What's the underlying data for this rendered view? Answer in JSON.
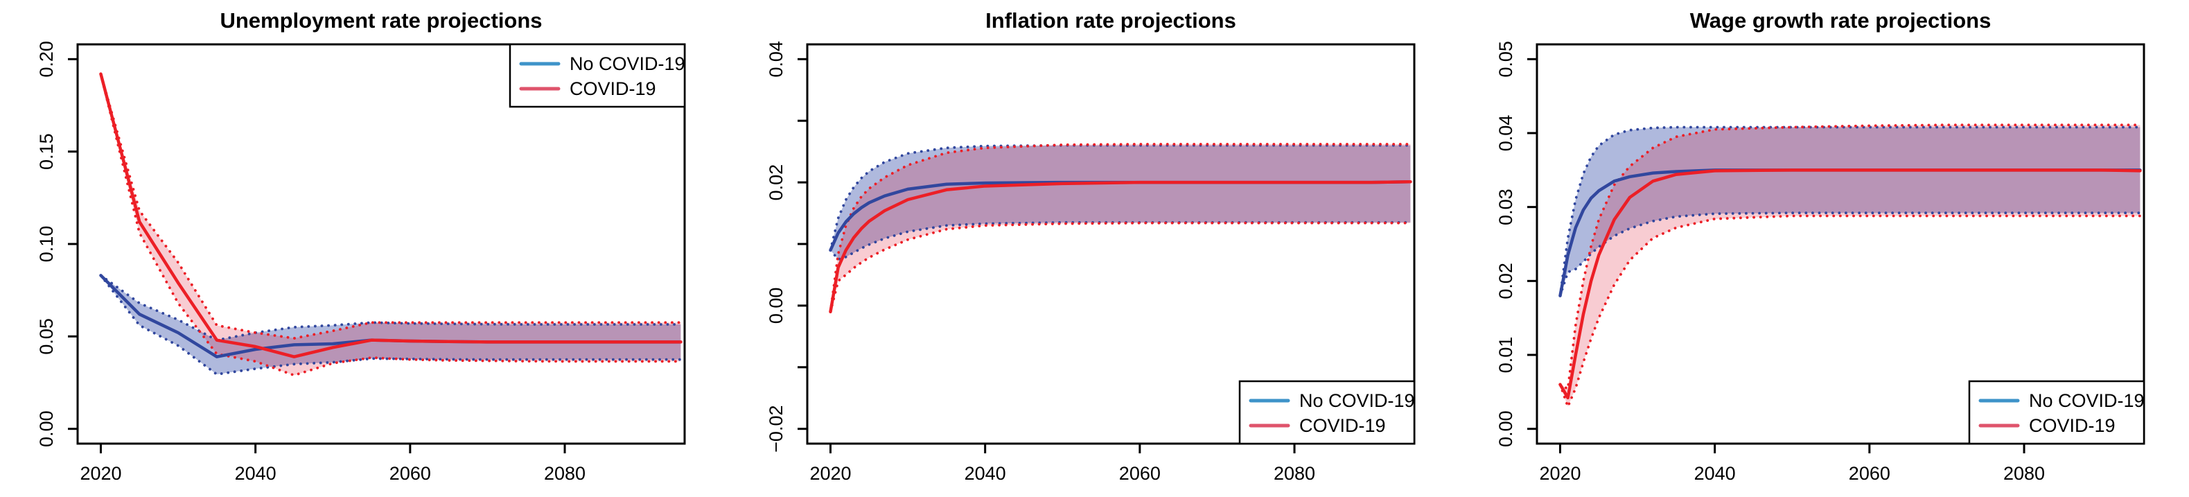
{
  "page": {
    "background": "#FFFFFF"
  },
  "colors": {
    "background": "#FFFFFF",
    "axis": "#000000",
    "text": "#000000",
    "no_covid_line": "#31479E",
    "covid_line": "#EC1F26",
    "no_covid_band": "rgba(26,55,158,0.35)",
    "covid_band": "rgba(220,0,30,0.20)",
    "legend_no_covid": "#3E93C9",
    "legend_covid": "#DF536B"
  },
  "legend_labels": {
    "no_covid": "No COVID-19",
    "covid": "COVID-19"
  },
  "chart_data": [
    {
      "type": "line",
      "title": "Unemployment rate projections",
      "xlabel": "",
      "ylabel": "",
      "x_range": [
        2017,
        2095.5
      ],
      "x_ticks": [
        2020,
        2040,
        2060,
        2080
      ],
      "y_range": [
        -0.008,
        0.208
      ],
      "y_ticks": [
        {
          "v": 0.0,
          "label": "0.00"
        },
        {
          "v": 0.05,
          "label": "0.05"
        },
        {
          "v": 0.1,
          "label": "0.10"
        },
        {
          "v": 0.15,
          "label": "0.15"
        },
        {
          "v": 0.2,
          "label": "0.20"
        }
      ],
      "grid": false,
      "legend_position": "top-right",
      "legend": [
        {
          "label": "No COVID-19",
          "color_key": "legend_no_covid"
        },
        {
          "label": "COVID-19",
          "color_key": "legend_covid"
        }
      ],
      "years": [
        2020,
        2025,
        2030,
        2035,
        2040,
        2045,
        2050,
        2055,
        2060,
        2065,
        2070,
        2075,
        2080,
        2085,
        2090,
        2095
      ],
      "series": [
        {
          "name": "No COVID-19",
          "color_key": "no_covid_line",
          "values": [
            0.083,
            0.062,
            0.052,
            0.039,
            0.043,
            0.0455,
            0.046,
            0.048,
            0.0475,
            0.0472,
            0.047,
            0.047,
            0.047,
            0.047,
            0.047,
            0.047
          ]
        },
        {
          "name": "COVID-19",
          "color_key": "covid_line",
          "values": [
            0.192,
            0.112,
            0.079,
            0.048,
            0.0445,
            0.039,
            0.044,
            0.048,
            0.0475,
            0.0472,
            0.047,
            0.047,
            0.047,
            0.047,
            0.047,
            0.047
          ]
        }
      ],
      "bands": [
        {
          "name": "No COVID-19 interval",
          "fill_key": "no_covid_band",
          "border_key": "no_covid_line",
          "lower": [
            0.083,
            0.056,
            0.045,
            0.0295,
            0.0325,
            0.035,
            0.036,
            0.038,
            0.0378,
            0.0376,
            0.0375,
            0.0375,
            0.0375,
            0.0375,
            0.0375,
            0.0375
          ],
          "upper": [
            0.083,
            0.068,
            0.059,
            0.048,
            0.052,
            0.055,
            0.056,
            0.0575,
            0.057,
            0.0568,
            0.0566,
            0.0565,
            0.0565,
            0.0565,
            0.0565,
            0.0565
          ]
        },
        {
          "name": "COVID-19 interval",
          "fill_key": "covid_band",
          "border_key": "covid_line",
          "lower": [
            0.192,
            0.106,
            0.068,
            0.0405,
            0.0365,
            0.029,
            0.0355,
            0.0385,
            0.0375,
            0.037,
            0.0368,
            0.0366,
            0.0365,
            0.0365,
            0.0365,
            0.0365
          ],
          "upper": [
            0.192,
            0.118,
            0.09,
            0.056,
            0.052,
            0.049,
            0.053,
            0.0575,
            0.0575,
            0.0575,
            0.0575,
            0.0575,
            0.0575,
            0.0575,
            0.0575,
            0.0575
          ]
        }
      ]
    },
    {
      "type": "line",
      "title": "Inflation rate projections",
      "xlabel": "",
      "ylabel": "",
      "x_range": [
        2017,
        2095.5
      ],
      "x_ticks": [
        2020,
        2040,
        2060,
        2080
      ],
      "y_range": [
        -0.0224,
        0.0424
      ],
      "y_ticks": [
        {
          "v": -0.02,
          "label": "−0.02"
        },
        {
          "v": -0.01,
          "label": ""
        },
        {
          "v": 0.0,
          "label": "0.00"
        },
        {
          "v": 0.01,
          "label": ""
        },
        {
          "v": 0.02,
          "label": "0.02"
        },
        {
          "v": 0.03,
          "label": ""
        },
        {
          "v": 0.04,
          "label": "0.04"
        }
      ],
      "grid": false,
      "legend_position": "bottom-right",
      "legend": [
        {
          "label": "No COVID-19",
          "color_key": "legend_no_covid"
        },
        {
          "label": "COVID-19",
          "color_key": "legend_covid"
        }
      ],
      "years": [
        2020,
        2021,
        2022,
        2023,
        2024,
        2025,
        2027,
        2030,
        2035,
        2040,
        2050,
        2060,
        2070,
        2080,
        2090,
        2095
      ],
      "series": [
        {
          "name": "No COVID-19",
          "color_key": "no_covid_line",
          "values": [
            0.009,
            0.0118,
            0.0136,
            0.0149,
            0.0159,
            0.0167,
            0.0178,
            0.0189,
            0.0197,
            0.0199,
            0.02,
            0.02,
            0.02,
            0.02,
            0.02,
            0.0201
          ]
        },
        {
          "name": "COVID-19",
          "color_key": "covid_line",
          "values": [
            -0.001,
            0.0062,
            0.009,
            0.011,
            0.0125,
            0.0137,
            0.0154,
            0.0172,
            0.0188,
            0.0194,
            0.0198,
            0.02,
            0.02,
            0.02,
            0.02,
            0.0201
          ]
        }
      ],
      "bands": [
        {
          "name": "No COVID-19 interval",
          "fill_key": "no_covid_band",
          "border_key": "no_covid_line",
          "lower": [
            0.009,
            0.0075,
            0.0079,
            0.0086,
            0.0093,
            0.0099,
            0.0109,
            0.012,
            0.013,
            0.0133,
            0.0135,
            0.0135,
            0.0135,
            0.0135,
            0.0135,
            0.0135
          ],
          "upper": [
            0.009,
            0.0142,
            0.0172,
            0.0192,
            0.0207,
            0.0218,
            0.0233,
            0.0247,
            0.0256,
            0.0259,
            0.026,
            0.026,
            0.026,
            0.026,
            0.026,
            0.026
          ]
        },
        {
          "name": "COVID-19 interval",
          "fill_key": "covid_band",
          "border_key": "covid_line",
          "lower": [
            -0.001,
            0.004,
            0.005,
            0.0061,
            0.007,
            0.0078,
            0.0091,
            0.0107,
            0.0124,
            0.013,
            0.0133,
            0.0134,
            0.0134,
            0.0134,
            0.0134,
            0.0134
          ],
          "upper": [
            -0.001,
            0.0084,
            0.013,
            0.0158,
            0.0177,
            0.019,
            0.0208,
            0.0228,
            0.0248,
            0.0256,
            0.0261,
            0.0262,
            0.0262,
            0.0262,
            0.0262,
            0.0262
          ]
        }
      ]
    },
    {
      "type": "line",
      "title": "Wage growth rate projections",
      "xlabel": "",
      "ylabel": "",
      "x_range": [
        2017,
        2095.5
      ],
      "x_ticks": [
        2020,
        2040,
        2060,
        2080
      ],
      "y_range": [
        -0.002,
        0.052
      ],
      "y_ticks": [
        {
          "v": 0.0,
          "label": "0.00"
        },
        {
          "v": 0.01,
          "label": "0.01"
        },
        {
          "v": 0.02,
          "label": "0.02"
        },
        {
          "v": 0.03,
          "label": "0.03"
        },
        {
          "v": 0.04,
          "label": "0.04"
        },
        {
          "v": 0.05,
          "label": "0.05"
        }
      ],
      "grid": false,
      "legend_position": "bottom-right",
      "legend": [
        {
          "label": "No COVID-19",
          "color_key": "legend_no_covid"
        },
        {
          "label": "COVID-19",
          "color_key": "legend_covid"
        }
      ],
      "years": [
        2020,
        2021,
        2022,
        2023,
        2024,
        2025,
        2027,
        2029,
        2032,
        2035,
        2040,
        2050,
        2060,
        2070,
        2080,
        2090,
        2095
      ],
      "series": [
        {
          "name": "No COVID-19",
          "color_key": "no_covid_line",
          "values": [
            0.018,
            0.0235,
            0.0272,
            0.0296,
            0.0312,
            0.0322,
            0.0335,
            0.0341,
            0.0346,
            0.0348,
            0.035,
            0.035,
            0.035,
            0.035,
            0.035,
            0.035,
            0.035
          ]
        },
        {
          "name": "COVID-19",
          "color_key": "covid_line",
          "values": [
            0.006,
            0.0042,
            0.01,
            0.0155,
            0.02,
            0.0235,
            0.0283,
            0.0313,
            0.0335,
            0.0344,
            0.0349,
            0.035,
            0.035,
            0.035,
            0.035,
            0.035,
            0.0349
          ]
        }
      ],
      "bands": [
        {
          "name": "No COVID-19 interval",
          "fill_key": "no_covid_band",
          "border_key": "no_covid_line",
          "lower": [
            0.018,
            0.0212,
            0.0216,
            0.0226,
            0.0237,
            0.0246,
            0.0261,
            0.0271,
            0.0281,
            0.0287,
            0.0291,
            0.0292,
            0.0292,
            0.0292,
            0.0292,
            0.0292,
            0.0292
          ],
          "upper": [
            0.018,
            0.0258,
            0.031,
            0.0345,
            0.0368,
            0.0383,
            0.0398,
            0.0404,
            0.0407,
            0.0408,
            0.0408,
            0.0408,
            0.0408,
            0.0408,
            0.0408,
            0.0408,
            0.0408
          ]
        },
        {
          "name": "COVID-19 interval",
          "fill_key": "covid_band",
          "border_key": "covid_line",
          "lower": [
            0.006,
            0.003,
            0.0055,
            0.009,
            0.0122,
            0.015,
            0.0195,
            0.0228,
            0.0258,
            0.0272,
            0.0284,
            0.0288,
            0.0288,
            0.0288,
            0.0288,
            0.0288,
            0.0288
          ],
          "upper": [
            0.006,
            0.0054,
            0.014,
            0.02,
            0.0247,
            0.0283,
            0.033,
            0.0355,
            0.038,
            0.0395,
            0.0405,
            0.0408,
            0.041,
            0.0411,
            0.0411,
            0.0411,
            0.0411
          ]
        }
      ]
    }
  ]
}
